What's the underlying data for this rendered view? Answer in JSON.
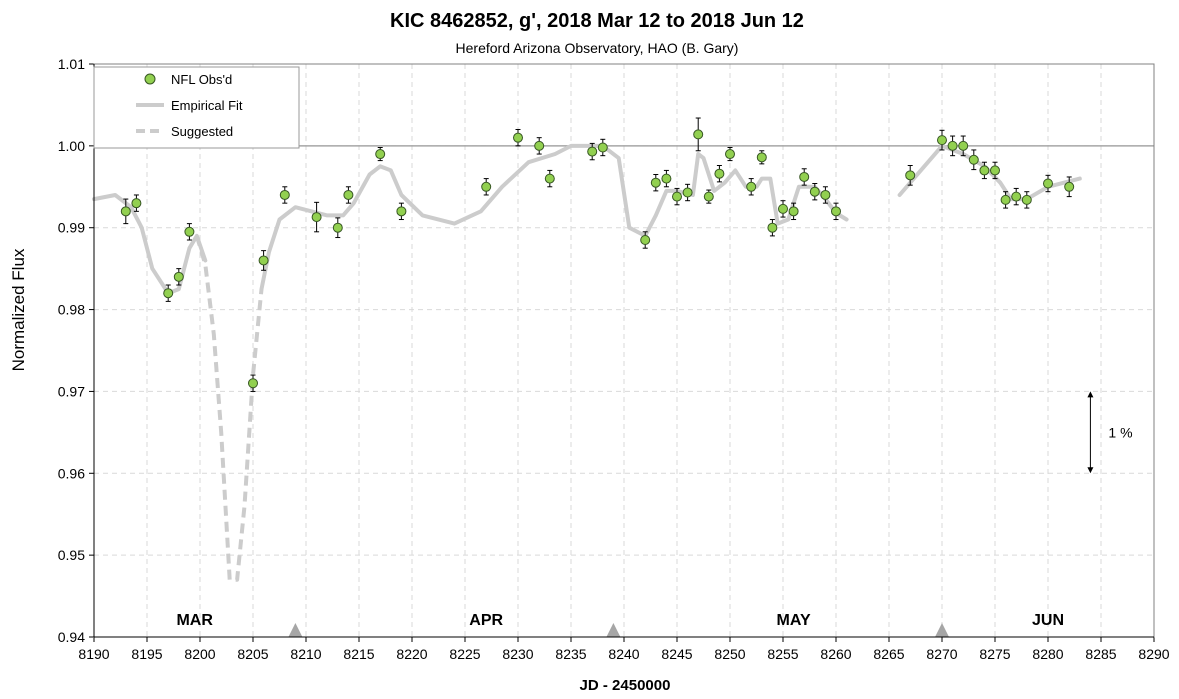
{
  "chart_data": {
    "type": "scatter",
    "title": "KIC 8462852, g', 2018 Mar 12 to 2018 Jun 12",
    "subtitle": "Hereford Arizona Observatory, HAO (B. Gary)",
    "xlabel": "JD - 2450000",
    "ylabel": "Normalized Flux",
    "xlim": [
      8190,
      8290
    ],
    "ylim": [
      0.94,
      1.01
    ],
    "x_ticks": [
      "8190",
      "8195",
      "8200",
      "8205",
      "8210",
      "8215",
      "8220",
      "8225",
      "8230",
      "8235",
      "8240",
      "8245",
      "8250",
      "8255",
      "8260",
      "8265",
      "8270",
      "8275",
      "8280",
      "8285",
      "8290"
    ],
    "y_ticks": [
      "0.94",
      "0.95",
      "0.96",
      "0.97",
      "0.98",
      "0.99",
      "1.00",
      "1.01"
    ],
    "grid": true,
    "reference_line_y": 1.0,
    "legend_placement": "top-left",
    "legend": [
      {
        "key": "observed",
        "label": "NFL Obs'd"
      },
      {
        "key": "fit",
        "label": "Empirical Fit"
      },
      {
        "key": "suggested",
        "label": "Suggested"
      }
    ],
    "colors": {
      "marker_fill": "#92d050",
      "marker_edge": "#375623",
      "fit_line": "#cccccc",
      "suggested_line": "#cccccc",
      "grid": "#d9d9d9",
      "reference": "#a6a6a6",
      "triangle": "#a6a6a6"
    },
    "months": [
      {
        "label": "MAR",
        "x": 8199.5
      },
      {
        "label": "APR",
        "x": 8227
      },
      {
        "label": "MAY",
        "x": 8256
      },
      {
        "label": "JUN",
        "x": 8280
      }
    ],
    "month_markers_x": [
      8209,
      8239,
      8270
    ],
    "scale_annotation": {
      "label": "1 %",
      "x": 8284,
      "y_top": 0.97,
      "y_bottom": 0.96
    },
    "observed": [
      {
        "x": 8193,
        "y": 0.992,
        "err": 0.0015
      },
      {
        "x": 8194,
        "y": 0.993,
        "err": 0.001
      },
      {
        "x": 8197,
        "y": 0.982,
        "err": 0.001
      },
      {
        "x": 8198,
        "y": 0.984,
        "err": 0.001
      },
      {
        "x": 8199,
        "y": 0.9895,
        "err": 0.001
      },
      {
        "x": 8205,
        "y": 0.971,
        "err": 0.001
      },
      {
        "x": 8206,
        "y": 0.986,
        "err": 0.0012
      },
      {
        "x": 8208,
        "y": 0.994,
        "err": 0.001
      },
      {
        "x": 8211,
        "y": 0.9913,
        "err": 0.0018
      },
      {
        "x": 8213,
        "y": 0.99,
        "err": 0.0012
      },
      {
        "x": 8214,
        "y": 0.994,
        "err": 0.001
      },
      {
        "x": 8217,
        "y": 0.999,
        "err": 0.0008
      },
      {
        "x": 8219,
        "y": 0.992,
        "err": 0.001
      },
      {
        "x": 8227,
        "y": 0.995,
        "err": 0.001
      },
      {
        "x": 8230,
        "y": 1.001,
        "err": 0.001
      },
      {
        "x": 8232,
        "y": 1.0,
        "err": 0.001
      },
      {
        "x": 8233,
        "y": 0.996,
        "err": 0.001
      },
      {
        "x": 8237,
        "y": 0.9993,
        "err": 0.001
      },
      {
        "x": 8238,
        "y": 0.9998,
        "err": 0.001
      },
      {
        "x": 8242,
        "y": 0.9885,
        "err": 0.001
      },
      {
        "x": 8243,
        "y": 0.9955,
        "err": 0.001
      },
      {
        "x": 8244,
        "y": 0.996,
        "err": 0.001
      },
      {
        "x": 8245,
        "y": 0.9938,
        "err": 0.001
      },
      {
        "x": 8246,
        "y": 0.9943,
        "err": 0.001
      },
      {
        "x": 8247,
        "y": 1.0014,
        "err": 0.002
      },
      {
        "x": 8248,
        "y": 0.9938,
        "err": 0.0008
      },
      {
        "x": 8249,
        "y": 0.9966,
        "err": 0.001
      },
      {
        "x": 8250,
        "y": 0.999,
        "err": 0.0008
      },
      {
        "x": 8252,
        "y": 0.995,
        "err": 0.001
      },
      {
        "x": 8253,
        "y": 0.9986,
        "err": 0.0008
      },
      {
        "x": 8254,
        "y": 0.99,
        "err": 0.001
      },
      {
        "x": 8255,
        "y": 0.9923,
        "err": 0.001
      },
      {
        "x": 8256,
        "y": 0.992,
        "err": 0.001
      },
      {
        "x": 8257,
        "y": 0.9962,
        "err": 0.001
      },
      {
        "x": 8258,
        "y": 0.9944,
        "err": 0.001
      },
      {
        "x": 8259,
        "y": 0.994,
        "err": 0.001
      },
      {
        "x": 8260,
        "y": 0.992,
        "err": 0.001
      },
      {
        "x": 8267,
        "y": 0.9964,
        "err": 0.0012
      },
      {
        "x": 8270,
        "y": 1.0007,
        "err": 0.0012
      },
      {
        "x": 8271,
        "y": 1.0,
        "err": 0.0012
      },
      {
        "x": 8272,
        "y": 1.0,
        "err": 0.0012
      },
      {
        "x": 8273,
        "y": 0.9983,
        "err": 0.0012
      },
      {
        "x": 8274,
        "y": 0.997,
        "err": 0.001
      },
      {
        "x": 8275,
        "y": 0.997,
        "err": 0.001
      },
      {
        "x": 8276,
        "y": 0.9934,
        "err": 0.001
      },
      {
        "x": 8277,
        "y": 0.9938,
        "err": 0.001
      },
      {
        "x": 8278,
        "y": 0.9934,
        "err": 0.001
      },
      {
        "x": 8280,
        "y": 0.9954,
        "err": 0.001
      },
      {
        "x": 8282,
        "y": 0.995,
        "err": 0.0012
      }
    ],
    "fit_segments": [
      [
        [
          8190,
          0.9935
        ],
        [
          8192,
          0.994
        ],
        [
          8193.5,
          0.9925
        ],
        [
          8194.5,
          0.99
        ],
        [
          8195.5,
          0.985
        ],
        [
          8197,
          0.982
        ],
        [
          8198,
          0.9825
        ],
        [
          8199,
          0.9875
        ],
        [
          8199.7,
          0.989
        ],
        [
          8200.5,
          0.986
        ]
      ],
      [
        [
          8205.8,
          0.9825
        ],
        [
          8206.5,
          0.987
        ],
        [
          8207.5,
          0.991
        ],
        [
          8209,
          0.9925
        ],
        [
          8212,
          0.9915
        ],
        [
          8213.5,
          0.9915
        ],
        [
          8214.5,
          0.993
        ],
        [
          8216,
          0.9965
        ],
        [
          8217,
          0.9975
        ],
        [
          8218,
          0.997
        ],
        [
          8219,
          0.994
        ],
        [
          8221,
          0.9915
        ],
        [
          8224,
          0.9905
        ],
        [
          8226.5,
          0.992
        ],
        [
          8228.5,
          0.995
        ],
        [
          8231,
          0.998
        ],
        [
          8233.5,
          0.999
        ],
        [
          8235,
          1.0
        ],
        [
          8238,
          1.0
        ],
        [
          8239.5,
          0.9985
        ],
        [
          8240.5,
          0.99
        ],
        [
          8242,
          0.989
        ],
        [
          8243,
          0.9915
        ],
        [
          8244,
          0.9945
        ],
        [
          8245,
          0.9945
        ],
        [
          8246.5,
          0.994
        ],
        [
          8247,
          0.999
        ],
        [
          8247.5,
          0.9985
        ],
        [
          8248.5,
          0.9945
        ],
        [
          8249.5,
          0.9955
        ],
        [
          8250.5,
          0.997
        ],
        [
          8251.5,
          0.995
        ],
        [
          8252.5,
          0.995
        ],
        [
          8253,
          0.996
        ],
        [
          8253.8,
          0.996
        ],
        [
          8254.5,
          0.9905
        ],
        [
          8255.5,
          0.991
        ],
        [
          8256.5,
          0.995
        ],
        [
          8258,
          0.995
        ],
        [
          8259,
          0.9935
        ],
        [
          8260,
          0.9918
        ],
        [
          8261,
          0.991
        ]
      ],
      [
        [
          8266,
          0.994
        ],
        [
          8268,
          0.997
        ],
        [
          8270,
          1.0
        ],
        [
          8272,
          0.999
        ],
        [
          8274,
          0.9975
        ],
        [
          8275.5,
          0.9955
        ],
        [
          8276.5,
          0.9935
        ],
        [
          8278,
          0.9935
        ],
        [
          8280,
          0.995
        ],
        [
          8283,
          0.996
        ]
      ]
    ],
    "suggested_segments": [
      [
        [
          8199.7,
          0.989
        ],
        [
          8200.5,
          0.9855
        ],
        [
          8201.3,
          0.977
        ],
        [
          8202,
          0.965
        ],
        [
          8202.8,
          0.947
        ],
        [
          8203.5,
          0.947
        ],
        [
          8204.2,
          0.956
        ],
        [
          8205,
          0.972
        ],
        [
          8205.8,
          0.9825
        ]
      ]
    ]
  }
}
